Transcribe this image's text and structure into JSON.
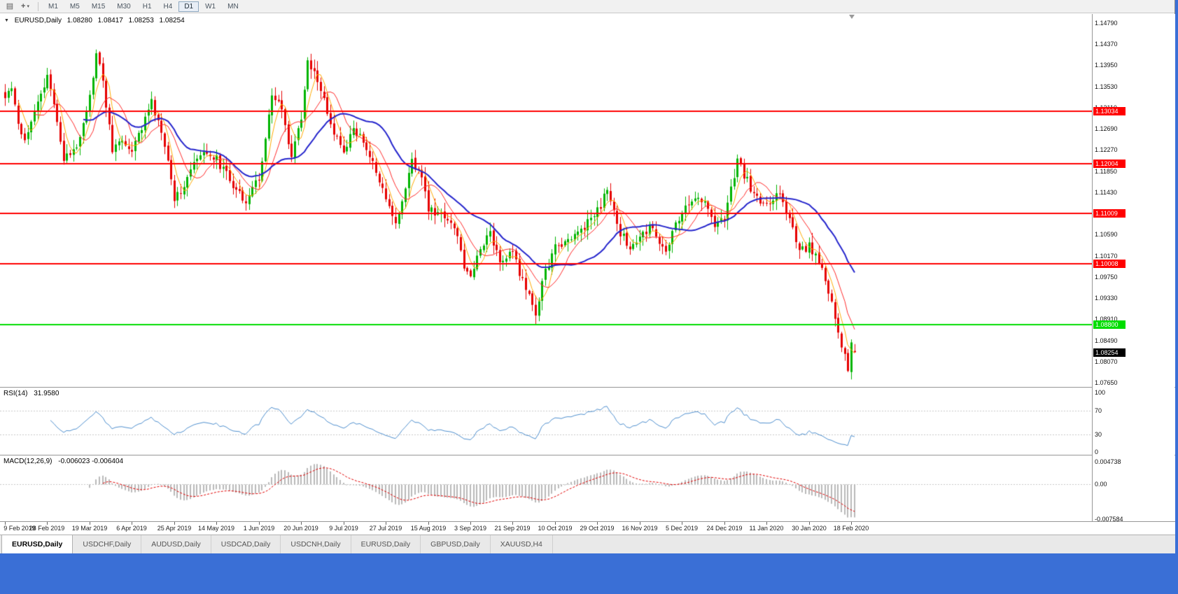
{
  "colors": {
    "desktop": "#3a6fd6",
    "window_bg": "#ffffff",
    "up": "#00b400",
    "down": "#e60000",
    "rsi": "#4f8fce",
    "macd_hist": "#b9b9b9",
    "macd_signal": "#e00000",
    "hline_red": "#ff0000",
    "hline_green": "#00dd00",
    "current_price_bg": "#000000"
  },
  "toolbar": {
    "buttons": [
      {
        "name": "chart-layout",
        "glyph": "▤"
      },
      {
        "name": "crosshair",
        "glyph": "+",
        "caret": "▾"
      }
    ],
    "timeframes": [
      {
        "label": "M1"
      },
      {
        "label": "M5"
      },
      {
        "label": "M15"
      },
      {
        "label": "M30"
      },
      {
        "label": "H1"
      },
      {
        "label": "H4"
      },
      {
        "label": "D1",
        "active": true
      },
      {
        "label": "W1"
      },
      {
        "label": "MN"
      }
    ]
  },
  "chart_header": {
    "collapse_glyph": "▼",
    "symbol": "EURUSD,Daily",
    "open": "1.08280",
    "high": "1.08417",
    "low": "1.08253",
    "close": "1.08254"
  },
  "price_axis": {
    "labels": [
      "1.14790",
      "1.14370",
      "1.13950",
      "1.13530",
      "1.13110",
      "1.12690",
      "1.12270",
      "1.11850",
      "1.11430",
      "1.10590",
      "1.10170",
      "1.09750",
      "1.09330",
      "1.08910",
      "1.08490",
      "1.08070",
      "1.07650"
    ]
  },
  "main_chart": {
    "horizontal_lines": [
      {
        "text": "1.13034",
        "color": "red"
      },
      {
        "text": "1.12004",
        "color": "red"
      },
      {
        "text": "1.11009",
        "color": "red"
      },
      {
        "text": "1.10008",
        "color": "red"
      },
      {
        "text": "1.08800",
        "color": "green"
      }
    ],
    "current_price": "1.08254"
  },
  "indicators": {
    "rsi": {
      "title": "RSI(14)",
      "value": "31.9580",
      "levels": [
        "100",
        "70",
        "30",
        "0"
      ]
    },
    "macd": {
      "title": "MACD(12,26,9)",
      "values": "-0.006023 -0.006404",
      "levels": [
        "0.004738",
        "0.00",
        "-0.007584"
      ]
    }
  },
  "time_axis": {
    "labels": [
      "9 Feb 2019",
      "28 Feb 2019",
      "19 Mar 2019",
      "6 Apr 2019",
      "25 Apr 2019",
      "14 May 2019",
      "1 Jun 2019",
      "20 Jun 2019",
      "9 Jul 2019",
      "27 Jul 2019",
      "15 Aug 2019",
      "3 Sep 2019",
      "21 Sep 2019",
      "10 Oct 2019",
      "29 Oct 2019",
      "16 Nov 2019",
      "5 Dec 2019",
      "24 Dec 2019",
      "11 Jan 2020",
      "30 Jan 2020",
      "18 Feb 2020"
    ]
  },
  "tabs": [
    {
      "label": "EURUSD,Daily",
      "active": true
    },
    {
      "label": "USDCHF,Daily"
    },
    {
      "label": "AUDUSD,Daily"
    },
    {
      "label": "USDCAD,Daily"
    },
    {
      "label": "USDCNH,Daily"
    },
    {
      "label": "EURUSD,Daily"
    },
    {
      "label": "GBPUSD,Daily"
    },
    {
      "label": "XAUUSD,H4"
    }
  ],
  "chart_data": {
    "type": "candlestick",
    "symbol": "EURUSD",
    "period": "Daily",
    "bar_count": 262,
    "price_range_visible": [
      1.0765,
      1.1479
    ],
    "close_waypoints": [
      [
        0,
        1.133
      ],
      [
        2,
        1.1355
      ],
      [
        4,
        1.1282
      ],
      [
        6,
        1.1248
      ],
      [
        9,
        1.131
      ],
      [
        11,
        1.1338
      ],
      [
        13,
        1.1368
      ],
      [
        15,
        1.1325
      ],
      [
        18,
        1.1205
      ],
      [
        20,
        1.122
      ],
      [
        22,
        1.1238
      ],
      [
        26,
        1.133
      ],
      [
        28,
        1.1418
      ],
      [
        30,
        1.1362
      ],
      [
        33,
        1.1228
      ],
      [
        36,
        1.1248
      ],
      [
        39,
        1.1222
      ],
      [
        43,
        1.1292
      ],
      [
        45,
        1.132
      ],
      [
        49,
        1.1238
      ],
      [
        52,
        1.1132
      ],
      [
        55,
        1.1158
      ],
      [
        58,
        1.1198
      ],
      [
        62,
        1.1225
      ],
      [
        65,
        1.1208
      ],
      [
        70,
        1.1158
      ],
      [
        74,
        1.1128
      ],
      [
        78,
        1.1172
      ],
      [
        80,
        1.125
      ],
      [
        82,
        1.1332
      ],
      [
        85,
        1.1308
      ],
      [
        88,
        1.1212
      ],
      [
        91,
        1.1292
      ],
      [
        93,
        1.1398
      ],
      [
        96,
        1.1368
      ],
      [
        100,
        1.1278
      ],
      [
        104,
        1.1218
      ],
      [
        107,
        1.1272
      ],
      [
        112,
        1.1218
      ],
      [
        117,
        1.1128
      ],
      [
        120,
        1.1078
      ],
      [
        123,
        1.1152
      ],
      [
        125,
        1.1202
      ],
      [
        128,
        1.1178
      ],
      [
        130,
        1.1108
      ],
      [
        134,
        1.1098
      ],
      [
        138,
        1.1078
      ],
      [
        141,
        1.0998
      ],
      [
        143,
        1.0972
      ],
      [
        146,
        1.1038
      ],
      [
        149,
        1.1062
      ],
      [
        152,
        1.1008
      ],
      [
        156,
        1.1022
      ],
      [
        160,
        1.0948
      ],
      [
        163,
        1.0902
      ],
      [
        166,
        1.0988
      ],
      [
        169,
        1.1032
      ],
      [
        173,
        1.1048
      ],
      [
        177,
        1.1072
      ],
      [
        180,
        1.1088
      ],
      [
        183,
        1.1118
      ],
      [
        185,
        1.1152
      ],
      [
        188,
        1.1072
      ],
      [
        192,
        1.1032
      ],
      [
        195,
        1.1052
      ],
      [
        199,
        1.1078
      ],
      [
        203,
        1.1018
      ],
      [
        206,
        1.1082
      ],
      [
        208,
        1.1102
      ],
      [
        212,
        1.1138
      ],
      [
        215,
        1.1122
      ],
      [
        218,
        1.1082
      ],
      [
        221,
        1.1092
      ],
      [
        225,
        1.1208
      ],
      [
        227,
        1.1178
      ],
      [
        231,
        1.1128
      ],
      [
        234,
        1.1122
      ],
      [
        238,
        1.1142
      ],
      [
        241,
        1.1092
      ],
      [
        244,
        1.1022
      ],
      [
        247,
        1.1038
      ],
      [
        250,
        1.1002
      ],
      [
        253,
        1.0948
      ],
      [
        255,
        1.0888
      ],
      [
        257,
        1.0838
      ],
      [
        259,
        1.0792
      ],
      [
        260,
        1.0845
      ],
      [
        261,
        1.08254
      ]
    ],
    "final_bar": {
      "open": 1.0828,
      "high": 1.08417,
      "low": 1.08253,
      "close": 1.08254
    },
    "moving_averages": [
      {
        "color": "#ffaa00",
        "period": 5,
        "width": 1
      },
      {
        "color": "#ff2a2a",
        "period": 10,
        "width": 1
      },
      {
        "color": "#2525cc",
        "period": 25,
        "width": 2
      }
    ]
  }
}
